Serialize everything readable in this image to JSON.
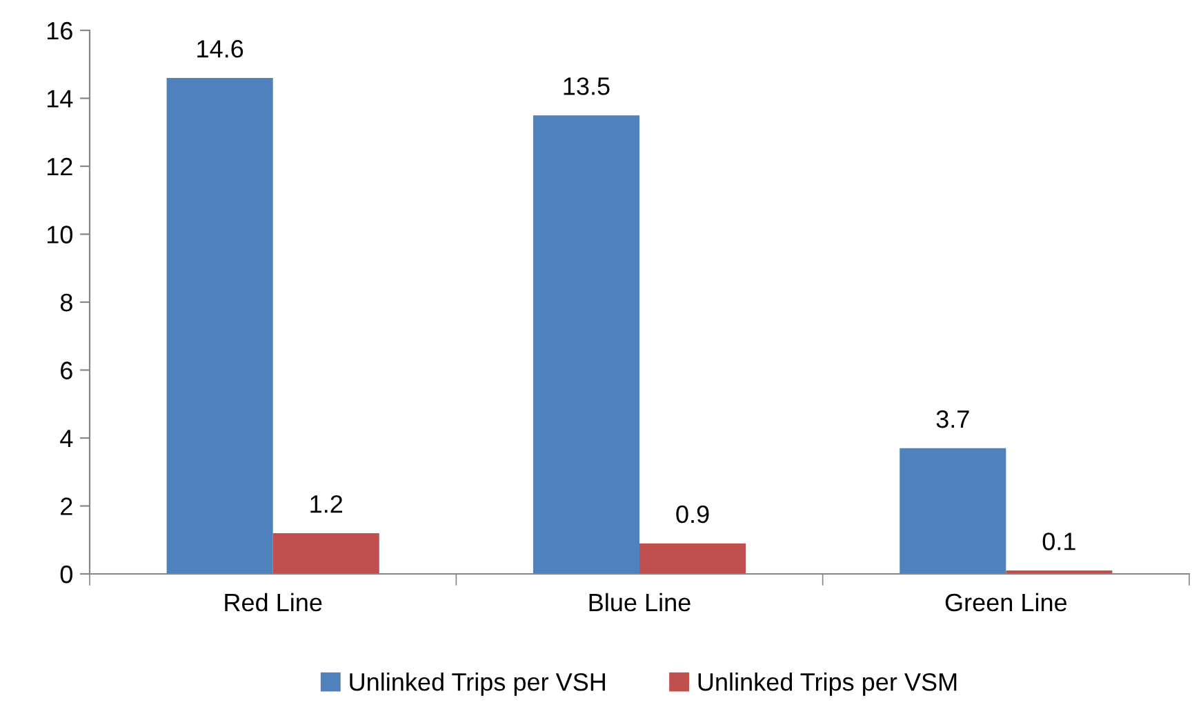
{
  "chart_data": {
    "type": "bar",
    "categories": [
      "Red Line",
      "Blue Line",
      "Green Line"
    ],
    "series": [
      {
        "name": "Unlinked Trips per VSH",
        "color": "#4f81bd",
        "values": [
          14.6,
          13.5,
          3.7
        ]
      },
      {
        "name": "Unlinked Trips per VSM",
        "color": "#c0504d",
        "values": [
          1.2,
          0.9,
          0.1
        ]
      }
    ],
    "ylim": [
      0,
      16
    ],
    "yticks": [
      0,
      2,
      4,
      6,
      8,
      10,
      12,
      14,
      16
    ],
    "grid": false,
    "legend": "bottom",
    "data_labels": true
  }
}
